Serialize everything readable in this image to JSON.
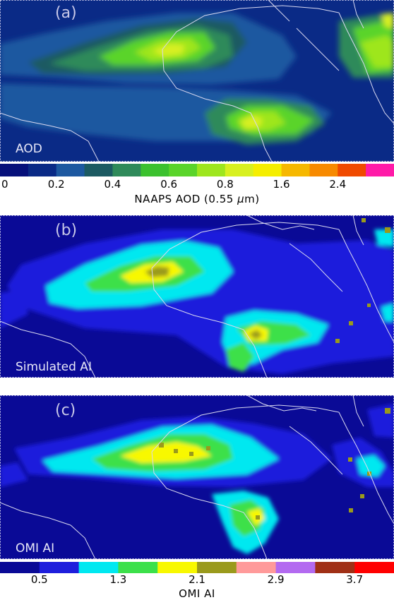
{
  "panels": [
    {
      "tag": "(a)",
      "name": "AOD"
    },
    {
      "tag": "(b)",
      "name": "Simulated AI"
    },
    {
      "tag": "(c)",
      "name": "OMI AI"
    }
  ],
  "colorbar_aod": {
    "title_prefix": "NAAPS AOD (0.55 ",
    "title_mu": "μ",
    "title_suffix": "m)",
    "ticks": [
      "0",
      "0.2",
      "0.4",
      "0.6",
      "0.8",
      "1.6",
      "2.4"
    ],
    "colors": [
      "#06107a",
      "#0a2a86",
      "#1d58a0",
      "#1c5a62",
      "#2f8a5a",
      "#3cc12e",
      "#5ad42a",
      "#9ee61e",
      "#d8f020",
      "#f5ee00",
      "#f6b800",
      "#f78a00",
      "#f04a00",
      "#ff1aa8"
    ]
  },
  "colorbar_ai": {
    "title": "OMI AI",
    "ticks": [
      "0.5",
      "1.3",
      "2.1",
      "2.9",
      "3.7"
    ],
    "colors": [
      "#0a0a96",
      "#1e1edc",
      "#00e8f0",
      "#3ce04a",
      "#f8f800",
      "#9a9a1c",
      "#ff9a9a",
      "#b36af0",
      "#a03016",
      "#ff0000"
    ]
  },
  "colors": {
    "ocean_aod": "#0a2a86",
    "ocean_ai": "#0a0a96",
    "coast": "#d8d8f0"
  }
}
